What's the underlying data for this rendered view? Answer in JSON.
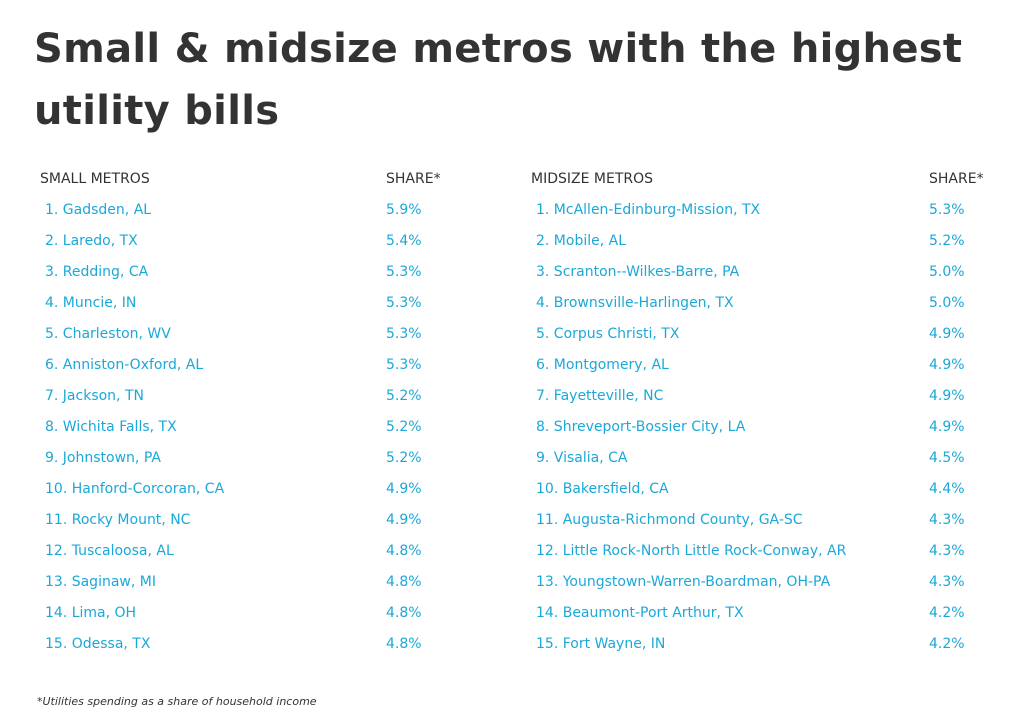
{
  "title": "Small & midsize metros with the highest utility bills",
  "footnote": "*Utilities spending as a share of household income",
  "colors": {
    "title": "#333333",
    "header": "#333333",
    "row_text": "#1ba8d8"
  },
  "chart_data": {
    "type": "table",
    "tables": [
      {
        "header_name": "SMALL METROS",
        "header_share": "SHARE*",
        "rows": [
          {
            "label": "1. Gadsden, AL",
            "share": "5.9%"
          },
          {
            "label": "2. Laredo, TX",
            "share": "5.4%"
          },
          {
            "label": "3. Redding, CA",
            "share": "5.3%"
          },
          {
            "label": "4. Muncie, IN",
            "share": "5.3%"
          },
          {
            "label": "5. Charleston, WV",
            "share": "5.3%"
          },
          {
            "label": "6. Anniston-Oxford, AL",
            "share": "5.3%"
          },
          {
            "label": "7. Jackson, TN",
            "share": "5.2%"
          },
          {
            "label": "8. Wichita Falls, TX",
            "share": "5.2%"
          },
          {
            "label": "9. Johnstown, PA",
            "share": "5.2%"
          },
          {
            "label": "10. Hanford-Corcoran, CA",
            "share": "4.9%"
          },
          {
            "label": "11. Rocky Mount, NC",
            "share": "4.9%"
          },
          {
            "label": "12. Tuscaloosa, AL",
            "share": "4.8%"
          },
          {
            "label": "13. Saginaw, MI",
            "share": "4.8%"
          },
          {
            "label": "14. Lima, OH",
            "share": "4.8%"
          },
          {
            "label": "15. Odessa, TX",
            "share": "4.8%"
          }
        ]
      },
      {
        "header_name": "MIDSIZE METROS",
        "header_share": "SHARE*",
        "rows": [
          {
            "label": "1. McAllen-Edinburg-Mission, TX",
            "share": "5.3%"
          },
          {
            "label": "2. Mobile, AL",
            "share": "5.2%"
          },
          {
            "label": "3. Scranton--Wilkes-Barre, PA",
            "share": "5.0%"
          },
          {
            "label": "4. Brownsville-Harlingen, TX",
            "share": "5.0%"
          },
          {
            "label": "5. Corpus Christi, TX",
            "share": "4.9%"
          },
          {
            "label": "6. Montgomery, AL",
            "share": "4.9%"
          },
          {
            "label": "7. Fayetteville, NC",
            "share": "4.9%"
          },
          {
            "label": "8. Shreveport-Bossier City, LA",
            "share": "4.9%"
          },
          {
            "label": "9. Visalia, CA",
            "share": "4.5%"
          },
          {
            "label": "10. Bakersfield, CA",
            "share": "4.4%"
          },
          {
            "label": "11. Augusta-Richmond County, GA-SC",
            "share": "4.3%"
          },
          {
            "label": "12. Little Rock-North Little Rock-Conway, AR",
            "share": "4.3%"
          },
          {
            "label": "13. Youngstown-Warren-Boardman, OH-PA",
            "share": "4.3%"
          },
          {
            "label": "14. Beaumont-Port Arthur, TX",
            "share": "4.2%"
          },
          {
            "label": "15. Fort Wayne, IN",
            "share": "4.2%"
          }
        ]
      }
    ]
  }
}
